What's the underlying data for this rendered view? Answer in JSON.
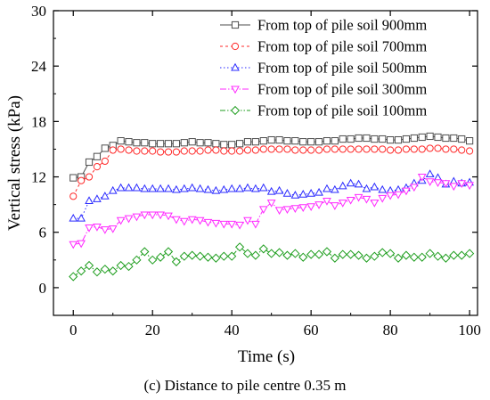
{
  "chart_data": {
    "type": "line",
    "xlabel": "Time (s)",
    "ylabel": "Vertical stress (kPa)",
    "caption": "(c) Distance to pile centre 0.35 m",
    "xlim": [
      -5,
      102
    ],
    "ylim": [
      -3,
      30
    ],
    "xticks": [
      0,
      20,
      40,
      60,
      80,
      100
    ],
    "yticks": [
      0,
      6,
      12,
      18,
      24,
      30
    ],
    "legend_position": "top-right",
    "grid": false,
    "series": [
      {
        "name": "From top of pile soil 900mm",
        "color": "#4d4d4d",
        "marker": "square",
        "dash": "solid",
        "x": [
          0,
          2,
          4,
          6,
          8,
          10,
          12,
          14,
          16,
          18,
          20,
          22,
          24,
          26,
          28,
          30,
          32,
          34,
          36,
          38,
          40,
          42,
          44,
          46,
          48,
          50,
          52,
          54,
          56,
          58,
          60,
          62,
          64,
          66,
          68,
          70,
          72,
          74,
          76,
          78,
          80,
          82,
          84,
          86,
          88,
          90,
          92,
          94,
          96,
          98,
          100
        ],
        "y": [
          11.9,
          12.0,
          13.6,
          14.2,
          15.1,
          15.4,
          15.9,
          15.8,
          15.7,
          15.7,
          15.6,
          15.6,
          15.6,
          15.6,
          15.7,
          15.8,
          15.7,
          15.7,
          15.6,
          15.5,
          15.5,
          15.6,
          15.8,
          15.8,
          15.9,
          16.0,
          16.0,
          15.9,
          15.9,
          15.8,
          15.8,
          15.8,
          15.9,
          15.9,
          16.1,
          16.1,
          16.2,
          16.2,
          16.1,
          16.1,
          16.0,
          16.0,
          16.1,
          16.2,
          16.3,
          16.4,
          16.3,
          16.2,
          16.2,
          16.1,
          15.9
        ]
      },
      {
        "name": "From top of pile soil 700mm",
        "color": "#ff2a2a",
        "marker": "circle",
        "dash": "3,3",
        "x": [
          0,
          2,
          4,
          6,
          8,
          10,
          12,
          14,
          16,
          18,
          20,
          22,
          24,
          26,
          28,
          30,
          32,
          34,
          36,
          38,
          40,
          42,
          44,
          46,
          48,
          50,
          52,
          54,
          56,
          58,
          60,
          62,
          64,
          66,
          68,
          70,
          72,
          74,
          76,
          78,
          80,
          82,
          84,
          86,
          88,
          90,
          92,
          94,
          96,
          98,
          100
        ],
        "y": [
          9.9,
          11.6,
          12.0,
          13.1,
          13.7,
          14.9,
          15.0,
          14.9,
          14.8,
          14.8,
          14.8,
          14.7,
          14.7,
          14.7,
          14.8,
          14.8,
          14.8,
          14.9,
          14.9,
          14.8,
          14.8,
          14.8,
          14.9,
          14.9,
          15.0,
          15.0,
          15.0,
          15.0,
          14.9,
          14.9,
          14.9,
          14.9,
          15.0,
          15.0,
          15.0,
          15.0,
          15.0,
          15.0,
          15.0,
          15.0,
          14.9,
          14.9,
          15.0,
          15.0,
          15.0,
          15.1,
          15.1,
          15.0,
          15.0,
          14.9,
          14.8
        ]
      },
      {
        "name": "From top of pile soil 500mm",
        "color": "#2a2aff",
        "marker": "triangle-up",
        "dash": "1.5,2.5",
        "x": [
          0,
          2,
          4,
          6,
          8,
          10,
          12,
          14,
          16,
          18,
          20,
          22,
          24,
          26,
          28,
          30,
          32,
          34,
          36,
          38,
          40,
          42,
          44,
          46,
          48,
          50,
          52,
          54,
          56,
          58,
          60,
          62,
          64,
          66,
          68,
          70,
          72,
          74,
          76,
          78,
          80,
          82,
          84,
          86,
          88,
          90,
          92,
          94,
          96,
          98,
          100
        ],
        "y": [
          7.5,
          7.5,
          9.4,
          9.6,
          9.9,
          10.5,
          10.8,
          10.8,
          10.8,
          10.7,
          10.7,
          10.7,
          10.7,
          10.6,
          10.7,
          10.8,
          10.7,
          10.6,
          10.5,
          10.6,
          10.7,
          10.7,
          10.8,
          10.7,
          10.8,
          10.4,
          10.5,
          10.2,
          10.0,
          10.1,
          10.2,
          10.3,
          10.7,
          10.6,
          11.0,
          11.3,
          11.2,
          10.7,
          10.9,
          10.6,
          10.5,
          10.6,
          10.8,
          11.3,
          11.6,
          12.3,
          11.9,
          11.2,
          11.5,
          11.3,
          11.4
        ]
      },
      {
        "name": "From top of pile soil 300mm",
        "color": "#ff2aff",
        "marker": "triangle-down",
        "dash": "7,2,1.5,2",
        "x": [
          0,
          2,
          4,
          6,
          8,
          10,
          12,
          14,
          16,
          18,
          20,
          22,
          24,
          26,
          28,
          30,
          32,
          34,
          36,
          38,
          40,
          42,
          44,
          46,
          48,
          50,
          52,
          54,
          56,
          58,
          60,
          62,
          64,
          66,
          68,
          70,
          72,
          74,
          76,
          78,
          80,
          82,
          84,
          86,
          88,
          90,
          92,
          94,
          96,
          98,
          100
        ],
        "y": [
          4.7,
          4.8,
          6.5,
          6.6,
          6.3,
          6.4,
          7.3,
          7.5,
          7.7,
          7.9,
          7.9,
          7.9,
          7.8,
          7.4,
          7.2,
          7.4,
          7.3,
          7.1,
          7.0,
          6.9,
          6.9,
          6.8,
          7.3,
          6.9,
          8.5,
          9.2,
          8.4,
          8.5,
          8.6,
          8.7,
          8.8,
          9.0,
          9.4,
          8.9,
          9.2,
          9.5,
          9.8,
          9.6,
          9.2,
          9.7,
          10.0,
          10.1,
          10.5,
          10.9,
          12.0,
          11.5,
          11.4,
          11.3,
          11.0,
          11.3,
          11.1
        ]
      },
      {
        "name": "From top of pile soil 100mm",
        "color": "#1f9e1f",
        "marker": "diamond",
        "dash": "6,2,1.5,2,1.5,2",
        "x": [
          0,
          2,
          4,
          6,
          8,
          10,
          12,
          14,
          16,
          18,
          20,
          22,
          24,
          26,
          28,
          30,
          32,
          34,
          36,
          38,
          40,
          42,
          44,
          46,
          48,
          50,
          52,
          54,
          56,
          58,
          60,
          62,
          64,
          66,
          68,
          70,
          72,
          74,
          76,
          78,
          80,
          82,
          84,
          86,
          88,
          90,
          92,
          94,
          96,
          98,
          100
        ],
        "y": [
          1.2,
          1.8,
          2.4,
          1.7,
          2.0,
          1.8,
          2.4,
          2.3,
          3.0,
          3.9,
          3.0,
          3.3,
          3.9,
          2.8,
          3.4,
          3.5,
          3.4,
          3.3,
          3.2,
          3.4,
          3.4,
          4.4,
          3.7,
          3.5,
          4.2,
          3.7,
          3.8,
          3.5,
          3.7,
          3.3,
          3.6,
          3.6,
          3.9,
          3.2,
          3.6,
          3.6,
          3.5,
          3.2,
          3.4,
          3.8,
          3.7,
          3.2,
          3.5,
          3.3,
          3.3,
          3.7,
          3.4,
          3.2,
          3.5,
          3.5,
          3.7
        ]
      }
    ]
  }
}
